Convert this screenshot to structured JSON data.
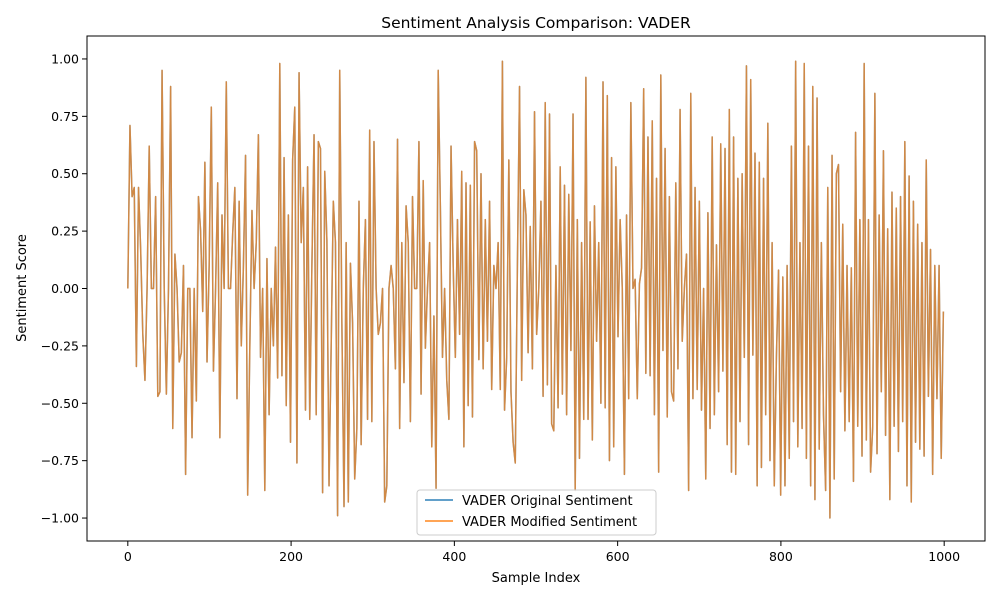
{
  "chart_data": {
    "type": "line",
    "title": "Sentiment Analysis Comparison: VADER",
    "xlabel": "Sample Index",
    "ylabel": "Sentiment Score",
    "xlim": [
      -50,
      1050
    ],
    "ylim": [
      -1.1,
      1.1
    ],
    "xticks": [
      0,
      200,
      400,
      600,
      800,
      1000
    ],
    "yticks": [
      -1.0,
      -0.75,
      -0.5,
      -0.25,
      0.0,
      0.25,
      0.5,
      0.75,
      1.0
    ],
    "ytick_labels": [
      "−1.00",
      "−0.75",
      "−0.50",
      "−0.25",
      "0.00",
      "0.25",
      "0.50",
      "0.75",
      "1.00"
    ],
    "legend_position": "lower-center",
    "x_range": [
      0,
      999
    ],
    "series": [
      {
        "name": "VADER Original Sentiment",
        "color": "#1f77b4",
        "alpha": 0.7,
        "values_ref": "shared"
      },
      {
        "name": "VADER Modified Sentiment",
        "color": "#ff7f0e",
        "alpha": 0.7,
        "values_ref": "shared"
      }
    ],
    "values": [
      0,
      0.71,
      0.4,
      0.44,
      -0.34,
      0.44,
      0.17,
      -0.2,
      -0.4,
      0,
      0.62,
      0,
      0,
      0.4,
      -0.47,
      -0.45,
      0.95,
      0,
      -0.46,
      0,
      0.88,
      -0.61,
      0.15,
      0,
      -0.32,
      -0.28,
      0.1,
      -0.81,
      0,
      0,
      -0.65,
      0,
      -0.49,
      0.4,
      0.25,
      -0.1,
      0.55,
      -0.32,
      0.1,
      0.79,
      -0.36,
      0,
      0.46,
      -0.65,
      0.32,
      0,
      0.9,
      0,
      0,
      0.24,
      0.44,
      -0.48,
      0.38,
      -0.25,
      0.1,
      0.58,
      -0.9,
      -0.25,
      0.34,
      0,
      0.2,
      0.67,
      -0.3,
      0,
      -0.88,
      0.13,
      -0.55,
      0,
      -0.25,
      0.18,
      -0.39,
      0.98,
      -0.38,
      0.57,
      -0.51,
      0.32,
      -0.67,
      0.56,
      0.79,
      -0.76,
      0.94,
      0.2,
      0.44,
      -0.53,
      0.53,
      -0.57,
      0.1,
      0.67,
      -0.55,
      0.64,
      0.61,
      -0.89,
      0.51,
      0.21,
      -0.86,
      -0.25,
      0.38,
      0.2,
      -0.99,
      0.95,
      -0.15,
      -0.95,
      0.2,
      -0.93,
      0.11,
      -0.15,
      -0.83,
      -0.61,
      0.38,
      -0.68,
      0,
      0.3,
      -0.57,
      0.69,
      -0.58,
      0.64,
      0,
      -0.2,
      -0.15,
      0,
      -0.93,
      -0.86,
      0,
      0.1,
      0,
      -0.35,
      0.65,
      -0.61,
      0.2,
      -0.41,
      0.36,
      0.2,
      -0.58,
      0.4,
      0,
      0,
      0.64,
      -0.46,
      0.47,
      -0.26,
      0,
      0.2,
      -0.69,
      -0.12,
      -0.87,
      0.95,
      0.36,
      -0.3,
      0,
      -0.4,
      -0.57,
      0.62,
      0.1,
      -0.3,
      0.3,
      -0.2,
      0.51,
      -0.69,
      0.46,
      -0.51,
      0.45,
      -0.56,
      0.64,
      0.6,
      -0.31,
      0.5,
      -0.35,
      0.3,
      -0.23,
      0.38,
      -0.44,
      0.1,
      0,
      0.2,
      -0.44,
      0.99,
      -0.53,
      -0.3,
      0.56,
      -0.45,
      -0.67,
      -0.76,
      0.1,
      0.88,
      -0.4,
      0.43,
      0.32,
      -0.28,
      0.27,
      -0.35,
      0.77,
      -0.2,
      0,
      0.38,
      -0.47,
      0.81,
      -0.42,
      0.76,
      -0.59,
      -0.62,
      0.1,
      -0.52,
      0.53,
      -0.46,
      0.45,
      -0.55,
      0.41,
      -0.27,
      0.76,
      -0.88,
      0.3,
      -0.74,
      0.2,
      -0.57,
      0.92,
      -0.57,
      0.29,
      -0.66,
      0.36,
      -0.23,
      0.2,
      -0.5,
      0.9,
      -0.52,
      0.84,
      -0.75,
      0.57,
      -0.69,
      0.53,
      -0.21,
      0.3,
      0,
      -0.81,
      0.32,
      -0.48,
      0.81,
      0,
      0.04,
      -0.48,
      0.02,
      0.09,
      0.87,
      -0.37,
      0.66,
      -0.38,
      0.73,
      -0.55,
      0.48,
      -0.8,
      0.93,
      -0.27,
      0.61,
      -0.56,
      0.4,
      -0.45,
      -0.49,
      0.46,
      -0.35,
      0.78,
      -0.23,
      0,
      0.15,
      -0.88,
      0.85,
      -0.48,
      0.44,
      -0.44,
      0.38,
      -0.53,
      0,
      -0.83,
      0.33,
      -0.61,
      0.66,
      -0.55,
      0.19,
      -0.45,
      0.63,
      -0.36,
      0.61,
      -0.68,
      0.78,
      -0.8,
      0.66,
      -0.81,
      0.48,
      -0.58,
      0.5,
      -0.3,
      0.97,
      -0.68,
      0.91,
      -0.29,
      0.59,
      -0.86,
      0.55,
      -0.78,
      0.48,
      -0.55,
      0.72,
      -0.75,
      0.2,
      -0.86,
      -0.3,
      0.08,
      -0.9,
      0.05,
      -0.86,
      0.1,
      -0.74,
      0.62,
      -0.58,
      0.99,
      -0.69,
      0.2,
      -0.61,
      0.98,
      -0.74,
      0.62,
      -0.86,
      0.88,
      -0.92,
      0.83,
      -0.7,
      0.2,
      -0.55,
      -0.88,
      0.44,
      -1.0,
      0.58,
      -0.83,
      0.5,
      0.54,
      -0.45,
      0.28,
      -0.62,
      0.1,
      -0.58,
      0.09,
      -0.84,
      0.68,
      -0.6,
      0.3,
      -0.73,
      0.98,
      -0.66,
      0.3,
      -0.8,
      -0.6,
      0.85,
      -0.72,
      0.32,
      -0.45,
      0.6,
      -0.64,
      0.26,
      -0.92,
      0.42,
      -0.6,
      0.35,
      -0.71,
      0.4,
      -0.58,
      0.64,
      -0.86,
      0.49,
      -0.93,
      0.38,
      -0.67,
      0.28,
      -0.7,
      0.2,
      -0.73,
      0.56,
      -0.47,
      0.17,
      -0.81,
      0.1,
      -0.48,
      0.1,
      -0.74,
      -0.1
    ]
  }
}
